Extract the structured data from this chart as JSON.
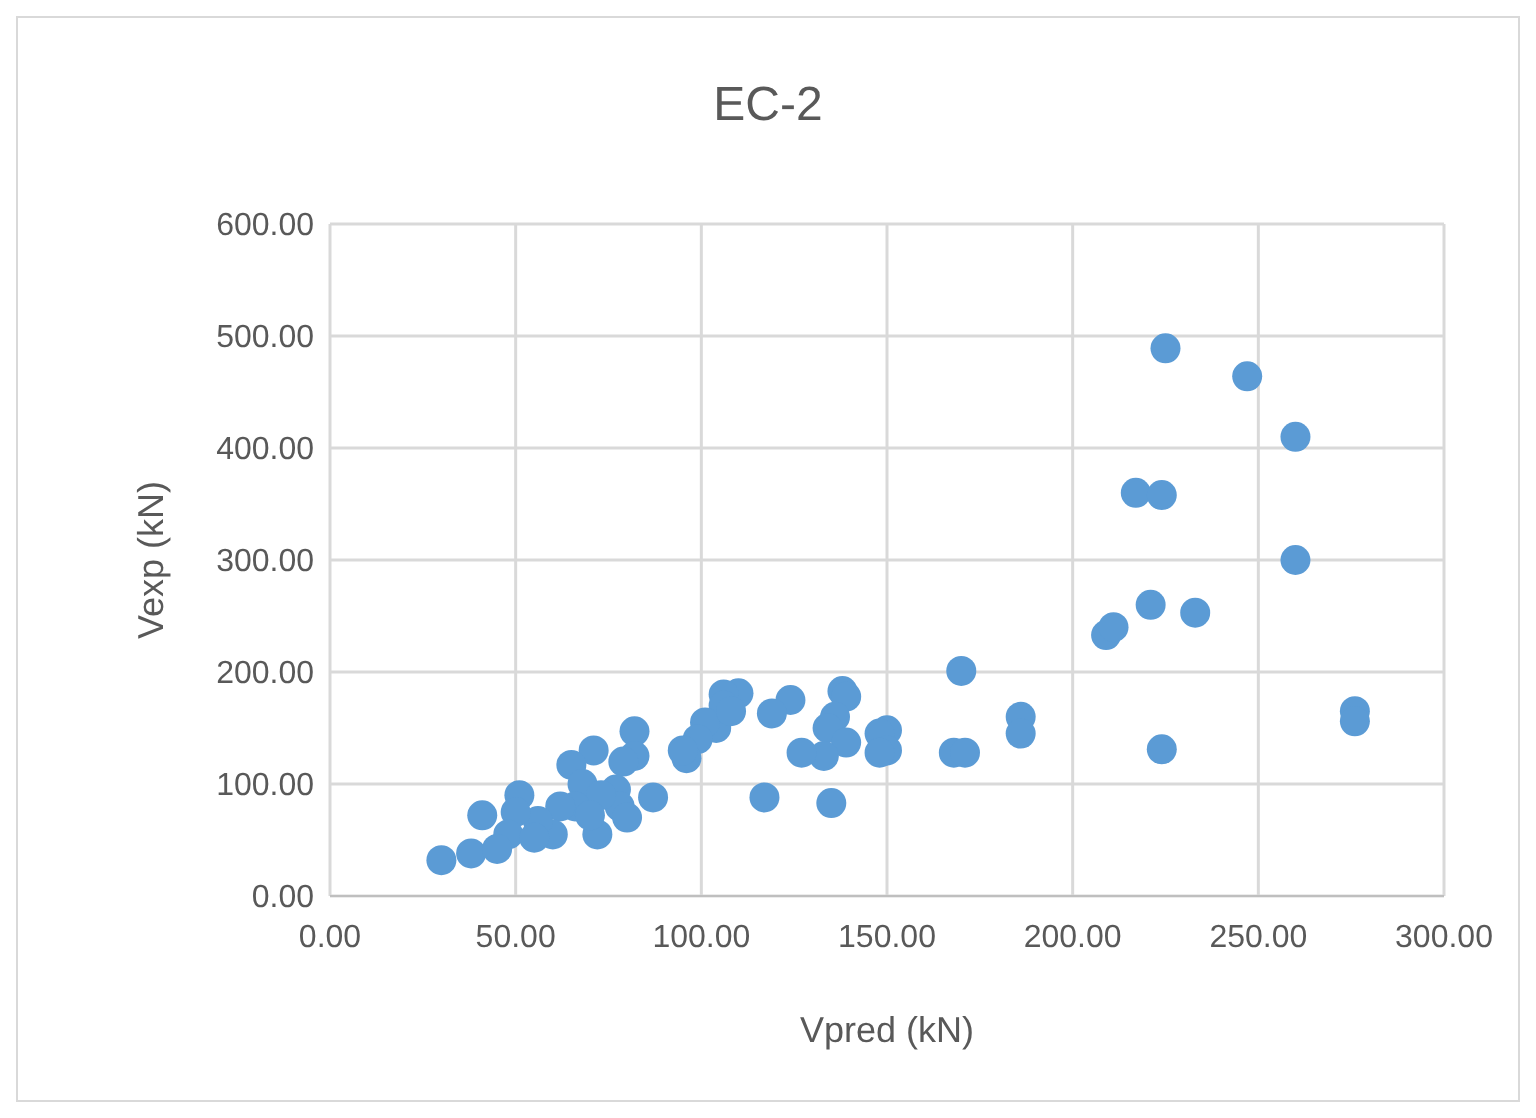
{
  "chart_data": {
    "type": "scatter",
    "title": "EC-2",
    "xlabel": "Vpred (kN)",
    "ylabel": "Vexp (kN)",
    "xlim": [
      0,
      300
    ],
    "ylim": [
      0,
      600
    ],
    "xticks": [
      {
        "value": 0,
        "label": "0.00"
      },
      {
        "value": 50,
        "label": "50.00"
      },
      {
        "value": 100,
        "label": "100.00"
      },
      {
        "value": 150,
        "label": "150.00"
      },
      {
        "value": 200,
        "label": "200.00"
      },
      {
        "value": 250,
        "label": "250.00"
      },
      {
        "value": 300,
        "label": "300.00"
      }
    ],
    "yticks": [
      {
        "value": 0,
        "label": "0.00"
      },
      {
        "value": 100,
        "label": "100.00"
      },
      {
        "value": 200,
        "label": "200.00"
      },
      {
        "value": 300,
        "label": "300.00"
      },
      {
        "value": 400,
        "label": "400.00"
      },
      {
        "value": 500,
        "label": "500.00"
      },
      {
        "value": 600,
        "label": "600.00"
      }
    ],
    "grid": true,
    "marker": "circle",
    "series": [
      {
        "color": "#5b9bd5",
        "x": [
          225,
          247,
          260,
          217,
          224,
          260,
          221,
          233,
          209,
          211,
          224,
          276,
          276,
          170,
          186,
          186,
          168,
          171,
          150,
          148,
          150,
          148,
          138,
          139,
          136,
          134,
          139,
          133,
          127,
          124,
          119,
          117,
          135,
          110,
          106,
          106,
          104,
          101,
          99,
          96,
          95,
          108,
          82,
          82,
          79,
          71,
          65,
          68,
          77,
          78,
          80,
          73,
          72,
          66,
          62,
          60,
          56,
          51,
          50,
          48,
          41,
          30,
          38,
          45,
          55,
          70,
          87
        ],
        "values": [
          489,
          464,
          410,
          360,
          358,
          300,
          260,
          253,
          233,
          240,
          131,
          165,
          156,
          201,
          160,
          145,
          128,
          128,
          148,
          145,
          130,
          128,
          183,
          178,
          160,
          150,
          137,
          125,
          128,
          175,
          163,
          88,
          83,
          181,
          180,
          170,
          150,
          155,
          140,
          123,
          130,
          165,
          147,
          125,
          120,
          130,
          117,
          100,
          95,
          80,
          70,
          90,
          55,
          80,
          80,
          55,
          67,
          90,
          75,
          55,
          72,
          32,
          38,
          42,
          52,
          72,
          88
        ]
      }
    ]
  }
}
